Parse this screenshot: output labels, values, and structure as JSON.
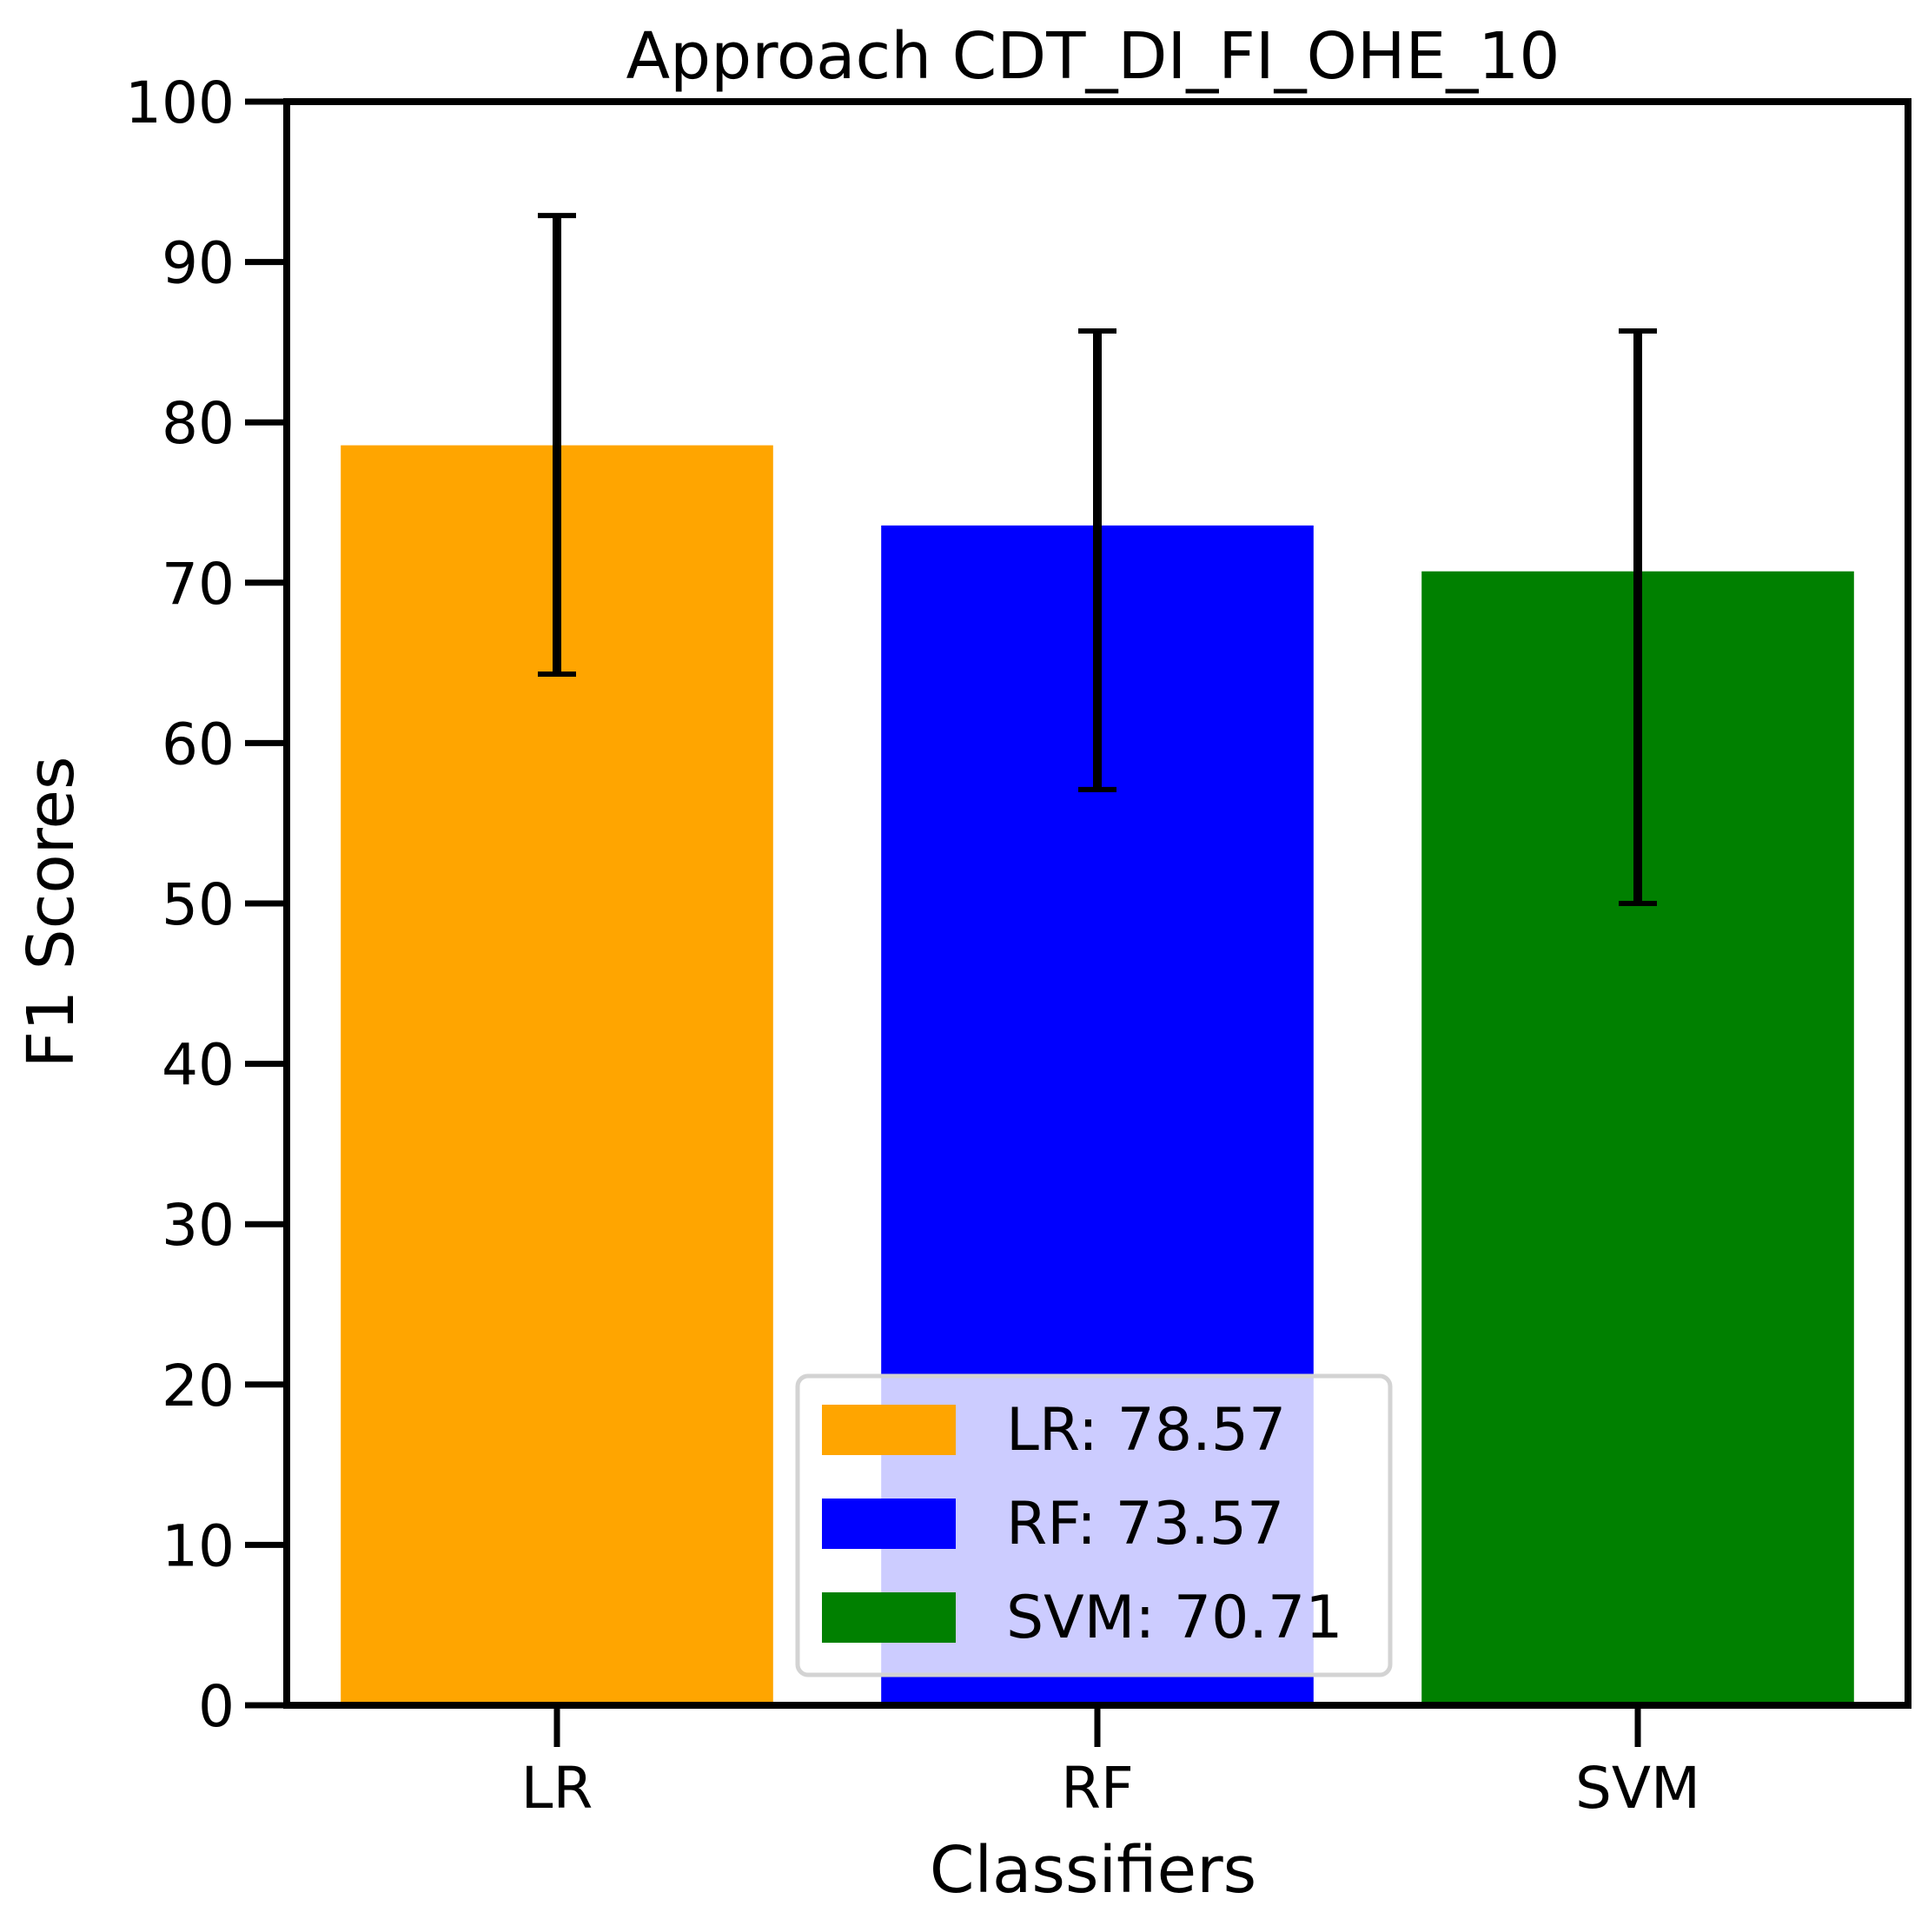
{
  "chart_data": {
    "type": "bar",
    "title": "Approach CDT_DI_FI_OHE_10",
    "xlabel": "Classifiers",
    "ylabel": "F1 Scores",
    "categories": [
      "LR",
      "RF",
      "SVM"
    ],
    "values": [
      78.57,
      73.57,
      70.71
    ],
    "errors_low": [
      64.3,
      57.1,
      50.0
    ],
    "errors_high": [
      92.9,
      85.7,
      85.7
    ],
    "colors": [
      "#FFA500",
      "#0000FF",
      "#008000"
    ],
    "ylim": [
      0,
      100
    ],
    "yticks": [
      0,
      10,
      20,
      30,
      40,
      50,
      60,
      70,
      80,
      90,
      100
    ],
    "grid": false,
    "legend": {
      "placement": "lower-center",
      "entries": [
        "LR: 78.57",
        "RF: 73.57",
        "SVM: 70.71"
      ]
    }
  }
}
